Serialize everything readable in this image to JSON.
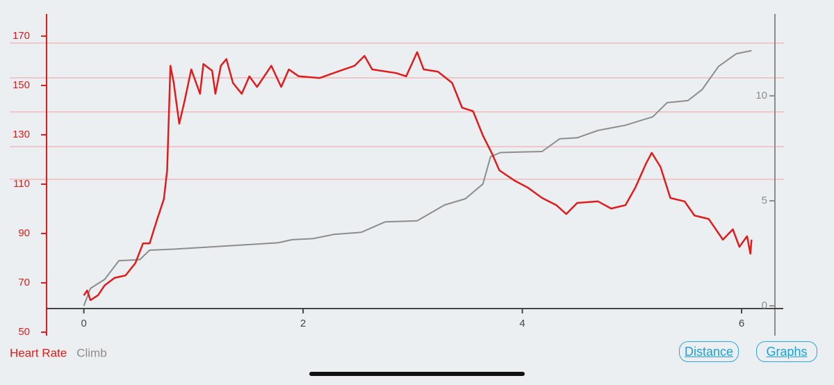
{
  "chart_data": {
    "type": "line",
    "xlim": [
      -0.34,
      6.38
    ],
    "xticks": [
      0,
      2,
      4,
      6
    ],
    "ylim": [
      48.6,
      179
    ],
    "yticks": [
      50,
      70,
      90,
      110,
      130,
      150,
      170
    ],
    "y2lim": [
      -1.42,
      13.9
    ],
    "y2ticks": [
      0,
      5,
      10
    ],
    "series": [
      {
        "name": "Heart Rate",
        "color": "#e01b1b",
        "x": [
          0,
          0.03,
          0.06,
          0.13,
          0.19,
          0.28,
          0.38,
          0.47,
          0.54,
          0.6,
          0.66,
          0.73,
          0.76,
          0.79,
          0.82,
          0.87,
          0.92,
          0.98,
          1.06,
          1.09,
          1.17,
          1.2,
          1.25,
          1.3,
          1.36,
          1.44,
          1.51,
          1.58,
          1.71,
          1.8,
          1.87,
          1.96,
          2.15,
          2.34,
          2.47,
          2.56,
          2.63,
          2.85,
          2.94,
          3.04,
          3.1,
          3.23,
          3.36,
          3.45,
          3.55,
          3.64,
          3.72,
          3.79,
          3.93,
          4.05,
          4.18,
          4.31,
          4.4,
          4.5,
          4.69,
          4.81,
          4.94,
          5.03,
          5.13,
          5.18,
          5.26,
          5.35,
          5.48,
          5.57,
          5.7,
          5.83,
          5.92,
          5.98,
          6.05,
          6.08,
          6.09
        ],
        "values": [
          64.9,
          66.9,
          63,
          65,
          69,
          72,
          73,
          78,
          86,
          86,
          94.5,
          104,
          115.6,
          158,
          151,
          134.5,
          144,
          156.5,
          146.6,
          158.7,
          156,
          146.6,
          158,
          160.7,
          151,
          146.6,
          153.7,
          149.4,
          158,
          149.4,
          156.5,
          153.7,
          153,
          156,
          158,
          162,
          156.5,
          155,
          153.7,
          163.5,
          156.5,
          155.6,
          151,
          141,
          139.6,
          129.7,
          122.7,
          115.6,
          111.4,
          108.6,
          104.4,
          101.5,
          97.9,
          102.4,
          103,
          100.1,
          101.5,
          108.6,
          118.5,
          122.7,
          117,
          104.4,
          103,
          97.3,
          95.9,
          87.5,
          91.7,
          84.6,
          88.9,
          81.8,
          87.5
        ]
      },
      {
        "name": "Climb",
        "color": "#8c8c8c",
        "axis": "y2",
        "x": [
          0,
          0.06,
          0.19,
          0.32,
          0.51,
          0.6,
          0.82,
          1.14,
          1.46,
          1.77,
          1.9,
          2.09,
          2.28,
          2.53,
          2.75,
          3.04,
          3.29,
          3.48,
          3.64,
          3.71,
          3.8,
          4.18,
          4.34,
          4.5,
          4.69,
          4.94,
          5.19,
          5.32,
          5.51,
          5.64,
          5.79,
          5.95,
          6.09
        ],
        "values": [
          0,
          0.83,
          1.26,
          2.15,
          2.2,
          2.65,
          2.7,
          2.8,
          2.9,
          3.0,
          3.15,
          3.2,
          3.4,
          3.5,
          4.0,
          4.05,
          4.8,
          5.1,
          5.8,
          7.1,
          7.3,
          7.35,
          7.95,
          8.0,
          8.35,
          8.6,
          9.0,
          9.67,
          9.77,
          10.3,
          11.4,
          12.0,
          12.15
        ]
      }
    ]
  },
  "buttons": [
    "Distance",
    "Graphs"
  ]
}
